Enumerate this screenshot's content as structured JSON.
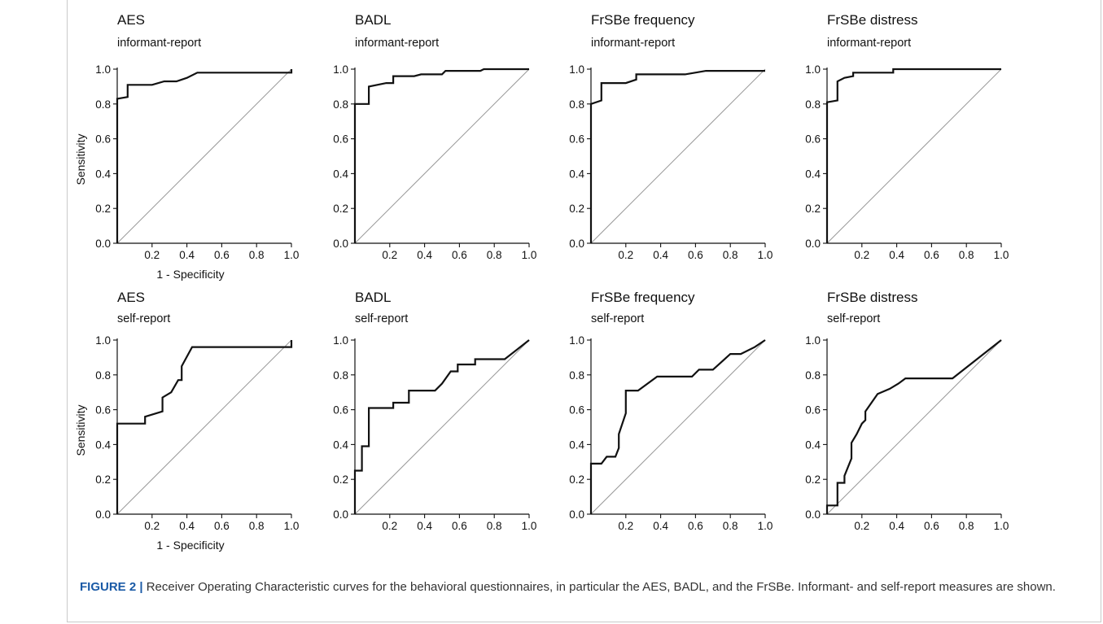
{
  "caption": {
    "label": "FIGURE 2 |",
    "text": " Receiver Operating Characteristic curves for the behavioral questionnaires, in particular the AES, BADL, and the FrSBe. Informant- and self-report measures are shown."
  },
  "colors": {
    "curve": "#111111",
    "diagonal": "#999999",
    "caption_label": "#1a5aa6",
    "caption_text": "#333333",
    "frame": "#c9c9c9"
  },
  "chart_data": [
    {
      "type": "line",
      "title": "AES",
      "subtitle": "informant-report",
      "xlabel": "1 - Specificity",
      "ylabel": "Sensitivity",
      "xlim": [
        0,
        1
      ],
      "ylim": [
        0,
        1
      ],
      "xticks": [
        "0.2",
        "0.4",
        "0.6",
        "0.8",
        "1.0"
      ],
      "yticks": [
        "0.0",
        "0.2",
        "0.4",
        "0.6",
        "0.8",
        "1.0"
      ],
      "grid": false,
      "reference_line": "diagonal",
      "x": [
        0,
        0,
        0,
        0.06,
        0.06,
        0.2,
        0.27,
        0.34,
        0.4,
        0.46,
        1.0,
        1.0
      ],
      "y": [
        0,
        0.82,
        0.83,
        0.84,
        0.91,
        0.91,
        0.93,
        0.93,
        0.95,
        0.98,
        0.98,
        1.0
      ]
    },
    {
      "type": "line",
      "title": "BADL",
      "subtitle": "informant-report",
      "xlabel": "",
      "ylabel": "",
      "xlim": [
        0,
        1
      ],
      "ylim": [
        0,
        1
      ],
      "xticks": [
        "0.2",
        "0.4",
        "0.6",
        "0.8",
        "1.0"
      ],
      "yticks": [
        "0.0",
        "0.2",
        "0.4",
        "0.6",
        "0.8",
        "1.0"
      ],
      "grid": false,
      "reference_line": "diagonal",
      "x": [
        0,
        0,
        0.08,
        0.08,
        0.18,
        0.22,
        0.22,
        0.34,
        0.38,
        0.5,
        0.52,
        0.72,
        0.74,
        1.0
      ],
      "y": [
        0,
        0.8,
        0.8,
        0.9,
        0.92,
        0.92,
        0.96,
        0.96,
        0.97,
        0.97,
        0.99,
        0.99,
        1.0,
        1.0
      ]
    },
    {
      "type": "line",
      "title": "FrSBe frequency",
      "subtitle": "informant-report",
      "xlabel": "",
      "ylabel": "",
      "xlim": [
        0,
        1
      ],
      "ylim": [
        0,
        1
      ],
      "xticks": [
        "0.2",
        "0.4",
        "0.6",
        "0.8",
        "1.0"
      ],
      "yticks": [
        "0.0",
        "0.2",
        "0.4",
        "0.6",
        "0.8",
        "1.0"
      ],
      "grid": false,
      "reference_line": "diagonal",
      "x": [
        0,
        0,
        0.06,
        0.06,
        0.2,
        0.26,
        0.26,
        0.54,
        0.66,
        1.0
      ],
      "y": [
        0,
        0.8,
        0.82,
        0.92,
        0.92,
        0.94,
        0.97,
        0.97,
        0.99,
        0.99
      ]
    },
    {
      "type": "line",
      "title": "FrSBe distress",
      "subtitle": "informant-report",
      "xlabel": "",
      "ylabel": "",
      "xlim": [
        0,
        1
      ],
      "ylim": [
        0,
        1
      ],
      "xticks": [
        "0.2",
        "0.4",
        "0.6",
        "0.8",
        "1.0"
      ],
      "yticks": [
        "0.0",
        "0.2",
        "0.4",
        "0.6",
        "0.8",
        "1.0"
      ],
      "grid": false,
      "reference_line": "diagonal",
      "x": [
        0,
        0,
        0.06,
        0.06,
        0.1,
        0.15,
        0.15,
        0.38,
        0.38,
        1.0
      ],
      "y": [
        0,
        0.81,
        0.82,
        0.93,
        0.95,
        0.96,
        0.98,
        0.98,
        1.0,
        1.0
      ]
    },
    {
      "type": "line",
      "title": "AES",
      "subtitle": "self-report",
      "xlabel": "1 - Specificity",
      "ylabel": "Sensitivity",
      "xlim": [
        0,
        1
      ],
      "ylim": [
        0,
        1
      ],
      "xticks": [
        "0.2",
        "0.4",
        "0.6",
        "0.8",
        "1.0"
      ],
      "yticks": [
        "0.0",
        "0.2",
        "0.4",
        "0.6",
        "0.8",
        "1.0"
      ],
      "grid": false,
      "reference_line": "diagonal",
      "x": [
        0,
        0,
        0.16,
        0.16,
        0.26,
        0.26,
        0.31,
        0.35,
        0.37,
        0.37,
        0.43,
        1.0,
        1.0
      ],
      "y": [
        0,
        0.52,
        0.52,
        0.56,
        0.59,
        0.67,
        0.7,
        0.77,
        0.77,
        0.85,
        0.96,
        0.96,
        1.0
      ]
    },
    {
      "type": "line",
      "title": "BADL",
      "subtitle": "self-report",
      "xlabel": "",
      "ylabel": "",
      "xlim": [
        0,
        1
      ],
      "ylim": [
        0,
        1
      ],
      "xticks": [
        "0.2",
        "0.4",
        "0.6",
        "0.8",
        "1.0"
      ],
      "yticks": [
        "0.0",
        "0.2",
        "0.4",
        "0.6",
        "0.8",
        "1.0"
      ],
      "grid": false,
      "reference_line": "diagonal",
      "x": [
        0,
        0,
        0.04,
        0.04,
        0.08,
        0.08,
        0.22,
        0.22,
        0.31,
        0.31,
        0.46,
        0.5,
        0.55,
        0.59,
        0.59,
        0.69,
        0.69,
        0.86,
        1.0
      ],
      "y": [
        0,
        0.25,
        0.25,
        0.39,
        0.39,
        0.61,
        0.61,
        0.64,
        0.64,
        0.71,
        0.71,
        0.75,
        0.82,
        0.82,
        0.86,
        0.86,
        0.89,
        0.89,
        1.0
      ]
    },
    {
      "type": "line",
      "title": "FrSBe frequency",
      "subtitle": "self-report",
      "xlabel": "",
      "ylabel": "",
      "xlim": [
        0,
        1
      ],
      "ylim": [
        0,
        1
      ],
      "xticks": [
        "0.2",
        "0.4",
        "0.6",
        "0.8",
        "1.0"
      ],
      "yticks": [
        "0.0",
        "0.2",
        "0.4",
        "0.6",
        "0.8",
        "1.0"
      ],
      "grid": false,
      "reference_line": "diagonal",
      "x": [
        0,
        0,
        0.06,
        0.09,
        0.14,
        0.16,
        0.16,
        0.2,
        0.2,
        0.27,
        0.38,
        0.58,
        0.62,
        0.7,
        0.8,
        0.86,
        0.94,
        1.0
      ],
      "y": [
        0,
        0.29,
        0.29,
        0.33,
        0.33,
        0.38,
        0.46,
        0.58,
        0.71,
        0.71,
        0.79,
        0.79,
        0.83,
        0.83,
        0.92,
        0.92,
        0.96,
        1.0
      ]
    },
    {
      "type": "line",
      "title": "FrSBe distress",
      "subtitle": "self-report",
      "xlabel": "",
      "ylabel": "",
      "xlim": [
        0,
        1
      ],
      "ylim": [
        0,
        1
      ],
      "xticks": [
        "0.2",
        "0.4",
        "0.6",
        "0.8",
        "1.0"
      ],
      "yticks": [
        "0.0",
        "0.2",
        "0.4",
        "0.6",
        "0.8",
        "1.0"
      ],
      "grid": false,
      "reference_line": "diagonal",
      "x": [
        0,
        0,
        0.06,
        0.06,
        0.1,
        0.1,
        0.14,
        0.14,
        0.17,
        0.2,
        0.22,
        0.22,
        0.29,
        0.36,
        0.41,
        0.45,
        0.72,
        1.0
      ],
      "y": [
        0,
        0.05,
        0.05,
        0.18,
        0.18,
        0.22,
        0.32,
        0.41,
        0.46,
        0.52,
        0.54,
        0.59,
        0.69,
        0.72,
        0.75,
        0.78,
        0.78,
        1.0
      ]
    }
  ]
}
